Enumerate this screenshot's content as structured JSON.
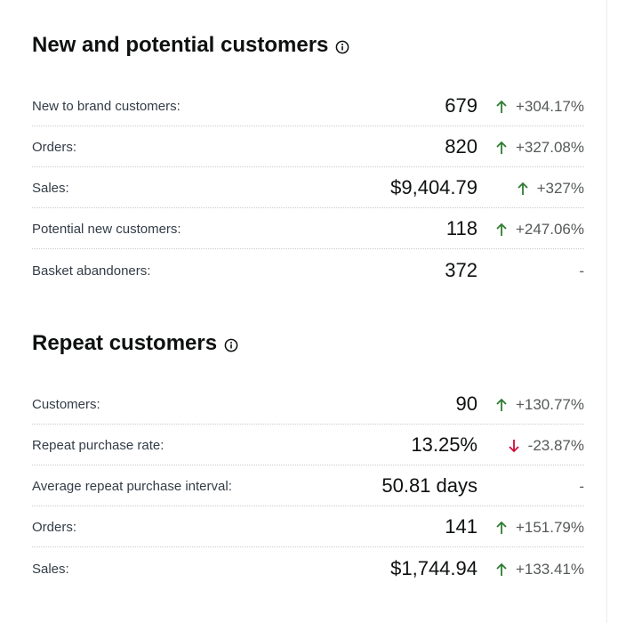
{
  "new_customers": {
    "title": "New and potential customers",
    "metrics": [
      {
        "label": "New to brand customers:",
        "value": "679",
        "direction": "up",
        "change": "+304.17%"
      },
      {
        "label": "Orders:",
        "value": "820",
        "direction": "up",
        "change": "+327.08%"
      },
      {
        "label": "Sales:",
        "value": "$9,404.79",
        "direction": "up",
        "change": "+327%"
      },
      {
        "label": "Potential new customers:",
        "value": "118",
        "direction": "up",
        "change": "+247.06%"
      },
      {
        "label": "Basket abandoners:",
        "value": "372",
        "direction": "none",
        "change": "-"
      }
    ]
  },
  "repeat_customers": {
    "title": "Repeat customers",
    "metrics": [
      {
        "label": "Customers:",
        "value": "90",
        "direction": "up",
        "change": "+130.77%"
      },
      {
        "label": "Repeat purchase rate:",
        "value": "13.25%",
        "direction": "down",
        "change": "-23.87%"
      },
      {
        "label": "Average repeat purchase interval:",
        "value": "50.81 days",
        "direction": "none",
        "change": "-"
      },
      {
        "label": "Orders:",
        "value": "141",
        "direction": "up",
        "change": "+151.79%"
      },
      {
        "label": "Sales:",
        "value": "$1,744.94",
        "direction": "up",
        "change": "+133.41%"
      }
    ]
  },
  "colors": {
    "up": "#2e7d32",
    "down": "#cc0c39",
    "neutral": "#565959"
  }
}
